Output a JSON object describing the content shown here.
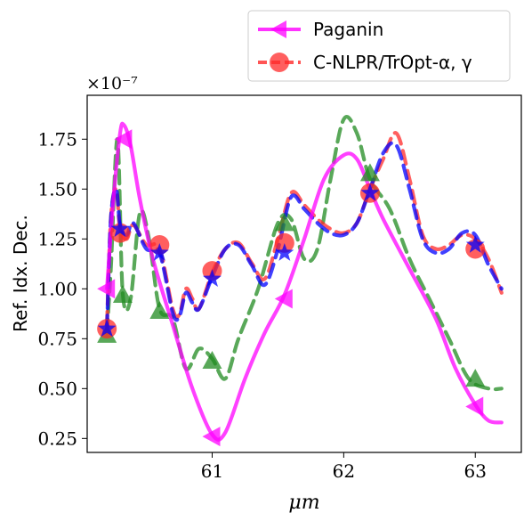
{
  "chart_data": {
    "type": "line",
    "xlabel": "μm",
    "ylabel": "Ref. Idx. Dec.",
    "y_offset_text": "×10⁻⁷",
    "xlim": [
      60.05,
      63.35
    ],
    "ylim": [
      0.18,
      1.97
    ],
    "x_ticks": [
      61,
      62,
      63
    ],
    "x_tick_labels": [
      "61",
      "62",
      "63"
    ],
    "y_ticks": [
      0.25,
      0.5,
      0.75,
      1.0,
      1.25,
      1.5,
      1.75
    ],
    "y_tick_labels": [
      "0.25",
      "0.50",
      "0.75",
      "1.00",
      "1.25",
      "1.50",
      "1.75"
    ],
    "grid": false,
    "legend_position": "top-right, above plot",
    "series": [
      {
        "name": "Paganin",
        "color": "#ff00ff",
        "style": "solid",
        "marker": "triangle-left",
        "x": [
          60.2,
          60.25,
          60.3,
          60.33,
          60.38,
          60.45,
          60.55,
          60.7,
          60.85,
          61.0,
          61.1,
          61.25,
          61.4,
          61.55,
          61.7,
          61.85,
          62.0,
          62.1,
          62.2,
          62.3,
          62.5,
          62.7,
          62.85,
          63.0,
          63.1,
          63.2
        ],
        "y": [
          1.0,
          1.45,
          1.78,
          1.82,
          1.72,
          1.45,
          1.15,
          0.82,
          0.5,
          0.27,
          0.28,
          0.55,
          0.78,
          0.97,
          1.25,
          1.55,
          1.67,
          1.65,
          1.5,
          1.35,
          1.1,
          0.85,
          0.6,
          0.42,
          0.34,
          0.33
        ],
        "markers_x": [
          60.2,
          60.33,
          61.0,
          61.55,
          63.0
        ],
        "markers_y": [
          1.0,
          1.75,
          0.26,
          0.95,
          0.41
        ]
      },
      {
        "name": "C-NLPR/TrOpt-α, γ",
        "color": "#ff2a2a",
        "style": "dashed",
        "marker": "circle",
        "x": [
          60.2,
          60.23,
          60.27,
          60.3,
          60.35,
          60.4,
          60.5,
          60.6,
          60.7,
          60.75,
          60.8,
          60.85,
          60.9,
          61.0,
          61.1,
          61.2,
          61.3,
          61.4,
          61.5,
          61.6,
          61.7,
          61.8,
          61.9,
          62.0,
          62.1,
          62.2,
          62.3,
          62.4,
          62.5,
          62.6,
          62.7,
          62.8,
          62.9,
          63.0,
          63.1,
          63.2
        ],
        "y": [
          0.82,
          1.35,
          1.5,
          1.3,
          1.25,
          1.32,
          1.22,
          1.2,
          0.9,
          0.87,
          1.0,
          0.95,
          0.9,
          1.08,
          1.2,
          1.23,
          1.13,
          1.05,
          1.25,
          1.48,
          1.42,
          1.35,
          1.3,
          1.28,
          1.33,
          1.5,
          1.65,
          1.78,
          1.55,
          1.27,
          1.2,
          1.22,
          1.27,
          1.25,
          1.15,
          0.98
        ],
        "markers_x": [
          60.2,
          60.3,
          60.6,
          61.0,
          61.55,
          62.2,
          63.0
        ],
        "markers_y": [
          0.8,
          1.28,
          1.22,
          1.09,
          1.23,
          1.48,
          1.2
        ]
      },
      {
        "color": "#0000ff",
        "style": "dashed",
        "marker": "star",
        "x": [
          60.2,
          60.23,
          60.27,
          60.3,
          60.35,
          60.4,
          60.5,
          60.6,
          60.7,
          60.75,
          60.8,
          60.85,
          60.9,
          61.0,
          61.1,
          61.2,
          61.3,
          61.4,
          61.5,
          61.6,
          61.7,
          61.8,
          61.9,
          62.0,
          62.1,
          62.2,
          62.3,
          62.4,
          62.5,
          62.6,
          62.7,
          62.8,
          62.9,
          63.0,
          63.1,
          63.2
        ],
        "y": [
          0.8,
          1.35,
          1.5,
          1.32,
          1.27,
          1.33,
          1.2,
          1.18,
          0.88,
          0.86,
          0.98,
          0.93,
          0.9,
          1.06,
          1.2,
          1.22,
          1.12,
          1.02,
          1.2,
          1.46,
          1.4,
          1.33,
          1.28,
          1.27,
          1.33,
          1.5,
          1.68,
          1.72,
          1.5,
          1.25,
          1.18,
          1.2,
          1.28,
          1.27,
          1.12,
          1.0
        ],
        "markers_x": [
          60.2,
          60.3,
          60.6,
          61.0,
          61.55,
          62.2,
          63.0
        ],
        "markers_y": [
          0.8,
          1.3,
          1.18,
          1.05,
          1.18,
          1.48,
          1.22
        ]
      },
      {
        "color": "#228b22",
        "style": "dashed",
        "marker": "triangle-up",
        "x": [
          60.2,
          60.23,
          60.28,
          60.32,
          60.38,
          60.45,
          60.52,
          60.6,
          60.7,
          60.8,
          60.9,
          61.0,
          61.1,
          61.2,
          61.35,
          61.5,
          61.6,
          61.7,
          61.8,
          61.9,
          62.0,
          62.1,
          62.2,
          62.35,
          62.5,
          62.65,
          62.8,
          62.95,
          63.1,
          63.2
        ],
        "y": [
          0.78,
          1.1,
          1.75,
          0.98,
          0.95,
          1.38,
          1.25,
          0.9,
          0.85,
          0.6,
          0.7,
          0.65,
          0.55,
          0.75,
          1.0,
          1.33,
          1.35,
          1.15,
          1.2,
          1.55,
          1.85,
          1.78,
          1.55,
          1.4,
          1.15,
          0.95,
          0.75,
          0.55,
          0.5,
          0.5
        ],
        "markers_x": [
          60.2,
          60.32,
          60.6,
          61.0,
          61.55,
          62.2,
          63.0
        ],
        "markers_y": [
          0.77,
          0.97,
          0.89,
          0.64,
          1.33,
          1.58,
          0.55
        ]
      }
    ]
  }
}
